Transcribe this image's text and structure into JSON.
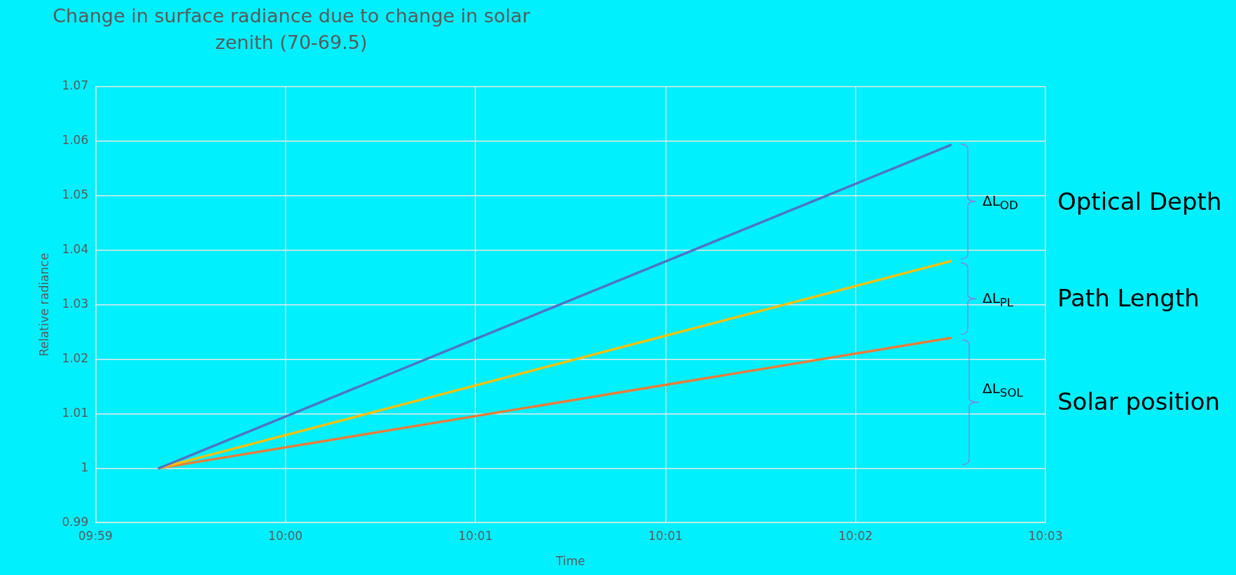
{
  "chart_data": {
    "type": "line",
    "title": "Change in surface radiance due to change in solar zenith (70-69.5)",
    "xlabel": "Time",
    "ylabel": "Relative radiance",
    "xlim": [
      9.98889,
      10.04444
    ],
    "xticks": [
      {
        "value": 9.98889,
        "label": "09:59"
      },
      {
        "value": 10.0,
        "label": "10:00"
      },
      {
        "value": 10.01111,
        "label": "10:01"
      },
      {
        "value": 10.02222,
        "label": "10:01"
      },
      {
        "value": 10.03333,
        "label": "10:02"
      },
      {
        "value": 10.04444,
        "label": "10:03"
      }
    ],
    "ylim": [
      0.99,
      1.07
    ],
    "yticks": [
      0.99,
      1,
      1.01,
      1.02,
      1.03,
      1.04,
      1.05,
      1.06,
      1.07
    ],
    "grid": true,
    "legend": false,
    "marker": "none",
    "line_style": "solid",
    "x": [
      9.99261,
      10.03889
    ],
    "series": [
      {
        "color": "#4f72c8",
        "values": [
          1.0,
          1.0593
        ]
      },
      {
        "color": "#ffc000",
        "values": [
          1.0,
          1.038
        ]
      },
      {
        "color": "#f07a35",
        "values": [
          1.0,
          1.0239
        ]
      }
    ],
    "annotations": [
      "ΔL$_{OD}$",
      "Optical Depth",
      "ΔL$_{PL}$",
      "Path Length",
      "ΔL$_{SOL}$",
      "Solar position"
    ]
  }
}
